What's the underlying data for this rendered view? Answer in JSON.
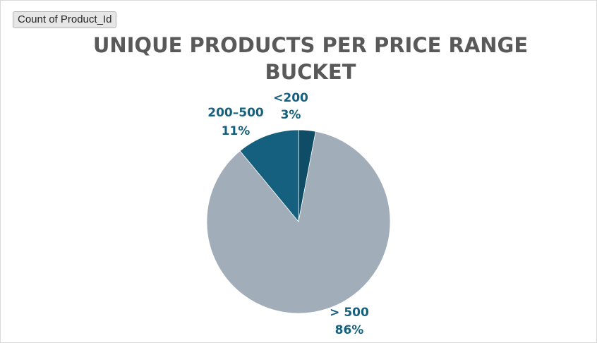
{
  "field_button": {
    "label": "Count of Product_Id"
  },
  "chart_data": {
    "type": "pie",
    "title_lines": [
      "UNIQUE PRODUCTS PER PRICE RANGE",
      "BUCKET"
    ],
    "slices": [
      {
        "label": "<200",
        "percent": 3,
        "percent_label": "3%",
        "color": "#0f4c66"
      },
      {
        "label": "> 500",
        "percent": 86,
        "percent_label": "86%",
        "color": "#a1adb8"
      },
      {
        "label": "200–500",
        "percent": 11,
        "percent_label": "11%",
        "color": "#15607f"
      }
    ],
    "start_angle_deg": 0,
    "direction": "clockwise",
    "label_color": "#15607f"
  }
}
